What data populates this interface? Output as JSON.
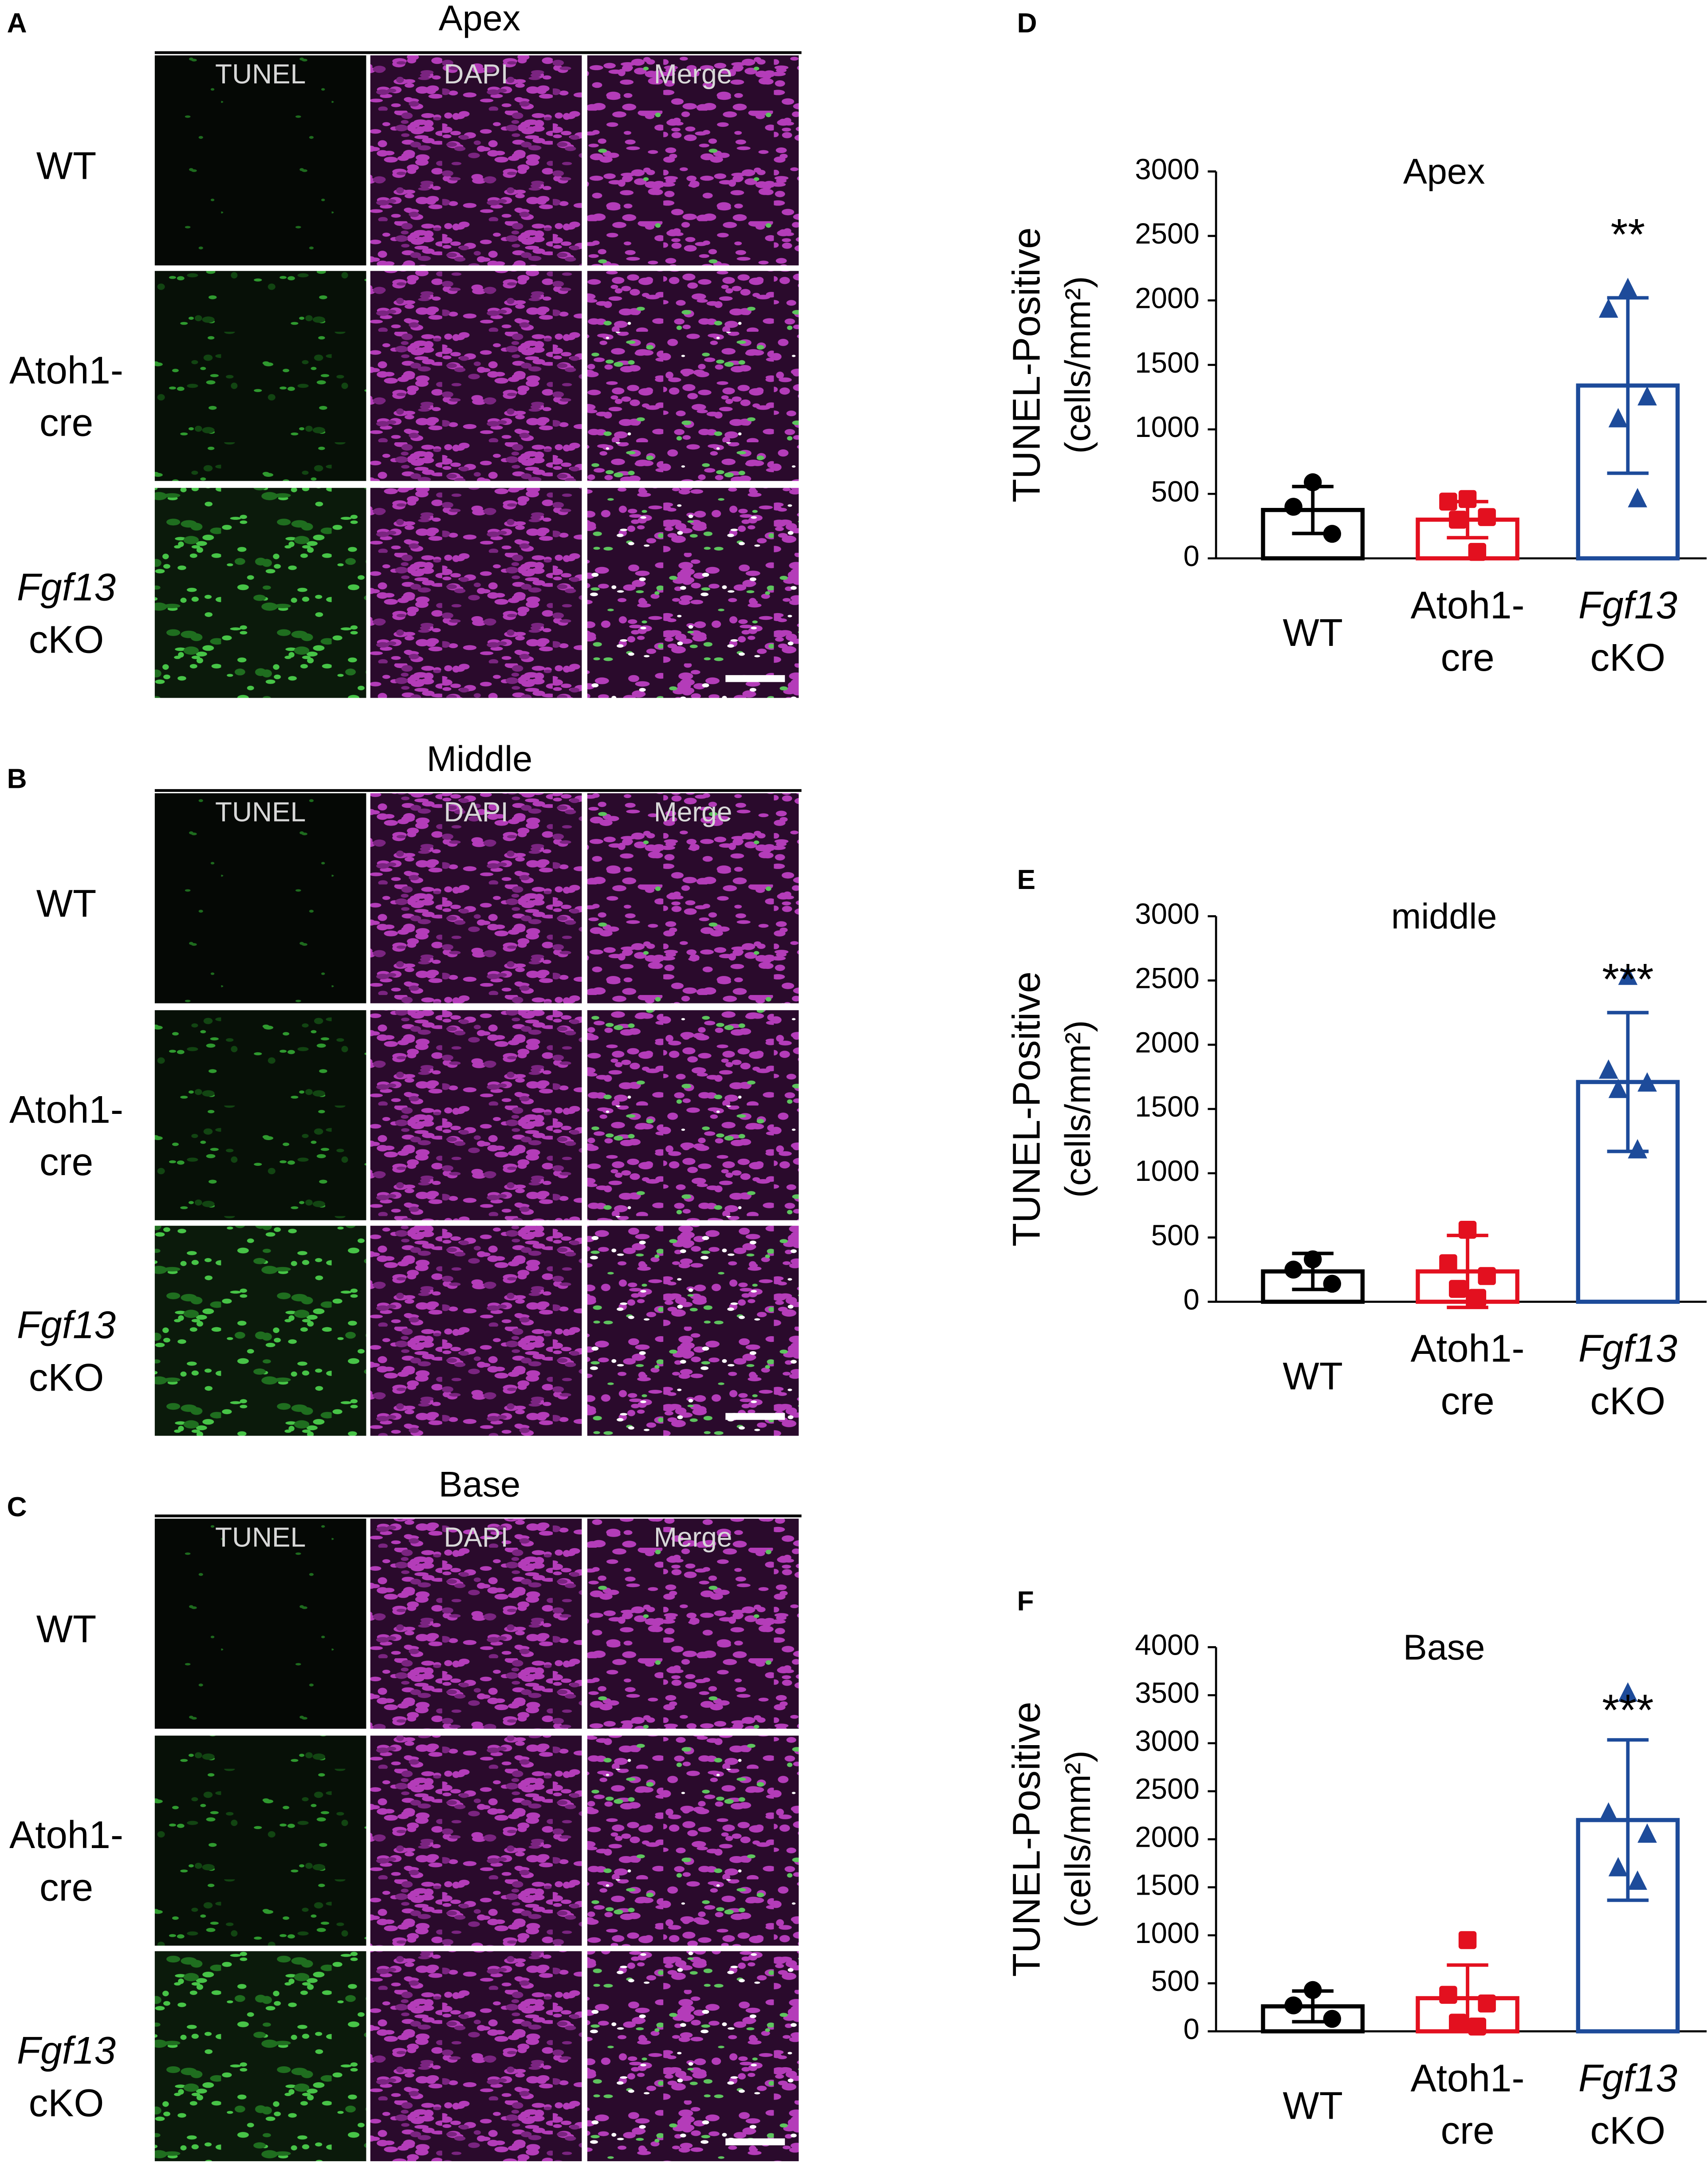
{
  "image_panels": [
    {
      "letter": "A",
      "title": "Apex",
      "columns": [
        "TUNEL",
        "DAPI",
        "Merge"
      ],
      "rows": [
        [
          "WT"
        ],
        [
          "Atoh1-",
          "cre"
        ],
        [
          "Fgf13",
          "cKO"
        ]
      ]
    },
    {
      "letter": "B",
      "title": "Middle",
      "columns": [
        "TUNEL",
        "DAPI",
        "Merge"
      ],
      "rows": [
        [
          "WT"
        ],
        [
          "Atoh1-",
          "cre"
        ],
        [
          "Fgf13",
          "cKO"
        ]
      ]
    },
    {
      "letter": "C",
      "title": "Base",
      "columns": [
        "TUNEL",
        "DAPI",
        "Merge"
      ],
      "rows": [
        [
          "WT"
        ],
        [
          "Atoh1-",
          "cre"
        ],
        [
          "Fgf13",
          "cKO"
        ]
      ]
    }
  ],
  "chart_data": [
    {
      "type": "bar",
      "letter": "D",
      "title": "Apex",
      "ylabel": "TUNEL-Positive",
      "ylabel_unit": "(cells/mm²)",
      "categories": [
        [
          "WT"
        ],
        [
          "Atoh1-",
          "cre"
        ],
        [
          "Fgf13",
          "cKO"
        ]
      ],
      "italic_categories": [
        false,
        false,
        true
      ],
      "colors": [
        "#000000",
        "#e3101f",
        "#1d4b9a"
      ],
      "markers": [
        "circle",
        "square",
        "triangle"
      ],
      "values": [
        375,
        300,
        1340
      ],
      "errors": [
        182,
        140,
        680
      ],
      "points": [
        [
          590,
          400,
          190
        ],
        [
          460,
          440,
          320,
          300,
          50
        ],
        [
          2090,
          1930,
          1250,
          1080,
          460
        ]
      ],
      "significance": [
        null,
        null,
        "**"
      ],
      "ylim": [
        0,
        3000
      ],
      "yticks": [
        0,
        500,
        1000,
        1500,
        2000,
        2500,
        3000
      ]
    },
    {
      "type": "bar",
      "letter": "E",
      "title": "middle",
      "ylabel": "TUNEL-Positive",
      "ylabel_unit": "(cells/mm²)",
      "categories": [
        [
          "WT"
        ],
        [
          "Atoh1-",
          "cre"
        ],
        [
          "Fgf13",
          "cKO"
        ]
      ],
      "italic_categories": [
        false,
        false,
        true
      ],
      "colors": [
        "#000000",
        "#e3101f",
        "#1d4b9a"
      ],
      "markers": [
        "circle",
        "square",
        "triangle"
      ],
      "values": [
        236,
        236,
        1710
      ],
      "errors": [
        140,
        280,
        540
      ],
      "points": [
        [
          330,
          250,
          140
        ],
        [
          560,
          300,
          200,
          100,
          30
        ],
        [
          2530,
          1800,
          1700,
          1650,
          1180
        ]
      ],
      "significance": [
        null,
        null,
        "***"
      ],
      "ylim": [
        0,
        3000
      ],
      "yticks": [
        0,
        500,
        1000,
        1500,
        2000,
        2500,
        3000
      ]
    },
    {
      "type": "bar",
      "letter": "F",
      "title": "Base",
      "ylabel": "TUNEL-Positive",
      "ylabel_unit": "(cells/mm²)",
      "categories": [
        [
          "WT"
        ],
        [
          "Atoh1-",
          "cre"
        ],
        [
          "Fgf13",
          "cKO"
        ]
      ],
      "italic_categories": [
        false,
        false,
        true
      ],
      "colors": [
        "#000000",
        "#e3101f",
        "#1d4b9a"
      ],
      "markers": [
        "circle",
        "square",
        "triangle"
      ],
      "values": [
        260,
        345,
        2200
      ],
      "errors": [
        160,
        345,
        835
      ],
      "points": [
        [
          430,
          270,
          130
        ],
        [
          950,
          380,
          290,
          90,
          50
        ],
        [
          3520,
          2270,
          2050,
          1700,
          1560
        ]
      ],
      "significance": [
        null,
        null,
        "***"
      ],
      "ylim": [
        0,
        4000
      ],
      "yticks": [
        0,
        500,
        1000,
        1500,
        2000,
        2500,
        3000,
        3500,
        4000
      ]
    }
  ]
}
